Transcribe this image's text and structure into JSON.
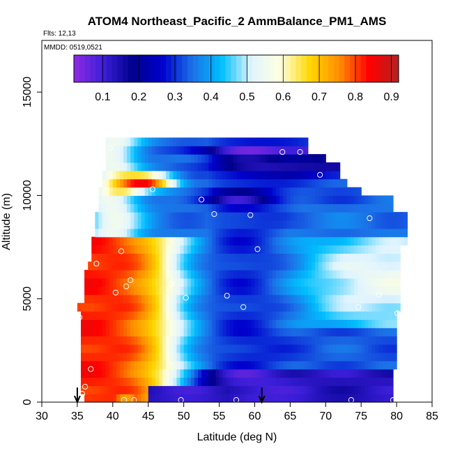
{
  "chart_data": {
    "type": "heatmap",
    "title": "ATOM4 Northeast_Pacific_2 AmmBalance_PM1_AMS",
    "flights_label": "Flts: 12,13",
    "mmdd_label": "MMDD: 0519,0521",
    "xlabel": "Latitude (deg N)",
    "ylabel": "Altitude (m)",
    "xlim": [
      30,
      85
    ],
    "ylim": [
      0,
      17500
    ],
    "x_ticks": [
      30,
      35,
      40,
      45,
      50,
      55,
      60,
      65,
      70,
      75,
      80,
      85
    ],
    "y_ticks": [
      0,
      5000,
      10000,
      15000
    ],
    "colorbar": {
      "min": 0.02,
      "max": 0.92,
      "ticks": [
        0.1,
        0.2,
        0.3,
        0.4,
        0.5,
        0.6,
        0.7,
        0.8,
        0.9
      ],
      "colors": [
        "#8e2be2",
        "#3b1ed8",
        "#00008b",
        "#0000cd",
        "#1c6fe6",
        "#00bfff",
        "#e0f4ff",
        "#ffffe0",
        "#ffd700",
        "#ff8c00",
        "#ff0000",
        "#b22222"
      ]
    },
    "profile_latitudes": [
      35,
      61
    ],
    "grid": false,
    "legend": "colorbar-top"
  }
}
